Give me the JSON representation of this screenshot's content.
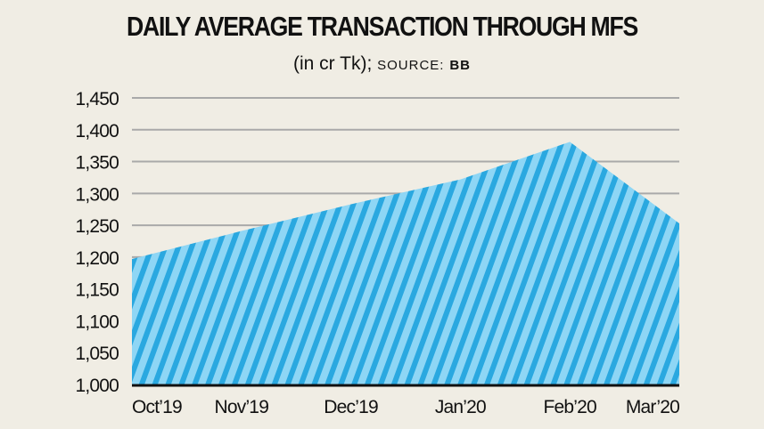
{
  "chart_data": {
    "type": "area",
    "title": "DAILY AVERAGE TRANSACTION THROUGH MFS",
    "subtitle_main": "(in cr Tk);",
    "subtitle_source_label": "SOURCE:",
    "subtitle_source": "BB",
    "categories": [
      "Oct’19",
      "Nov’19",
      "Dec’19",
      "Jan’20",
      "Feb’20",
      "Mar’20"
    ],
    "values": [
      1197,
      1241,
      1283,
      1322,
      1381,
      1253
    ],
    "ylim": [
      1000,
      1450
    ],
    "yticks": [
      1000,
      1050,
      1100,
      1150,
      1200,
      1250,
      1300,
      1350,
      1400,
      1450
    ],
    "ytick_labels": [
      "1,000",
      "1,050",
      "1,100",
      "1,150",
      "1,200",
      "1,250",
      "1,300",
      "1,350",
      "1,400",
      "1,450"
    ],
    "grid": true,
    "colors": {
      "fill_dark": "#2aa8e0",
      "fill_light": "#8ed6f5",
      "grid": "#a9a9a9",
      "axis": "#111111"
    }
  }
}
